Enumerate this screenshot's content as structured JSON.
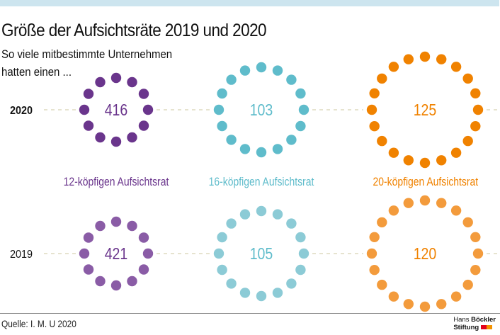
{
  "header": {
    "title": "Größe der Aufsichtsräte 2019 und 2020",
    "subtitle_line1": "So viele mitbestimmte Unternehmen",
    "subtitle_line2": "hatten einen ..."
  },
  "footer": {
    "source": "Quelle: I. M. U 2020",
    "logo_line1_light": "Hans",
    "logo_line1_bold": "Böckler",
    "logo_line2": "Stiftung",
    "logo_colors": [
      "#e3001b",
      "#f39200"
    ]
  },
  "chart_data": {
    "type": "dot-circle",
    "title": "Größe der Aufsichtsräte 2019 und 2020",
    "subtitle": "So viele mitbestimmte Unternehmen hatten einen ...",
    "years": [
      "2020",
      "2019"
    ],
    "categories": [
      {
        "label": "12-köpfigen Aufsichtsrat",
        "seats": 12,
        "color": "#6a358c",
        "color_2019": "#8a5ca6"
      },
      {
        "label": "16-köpfigen Aufsichtsrat",
        "seats": 16,
        "color": "#5fbccb",
        "color_2019": "#8ccbd6"
      },
      {
        "label": "20-köpfigen Aufsichtsrat",
        "seats": 20,
        "color": "#f08200",
        "color_2019": "#f39b3c"
      }
    ],
    "series": [
      {
        "name": "2020",
        "values": [
          416,
          103,
          125
        ]
      },
      {
        "name": "2019",
        "values": [
          421,
          105,
          120
        ]
      }
    ],
    "connector_color": "#e6e3cf",
    "source": "Quelle: I. M. U 2020"
  }
}
